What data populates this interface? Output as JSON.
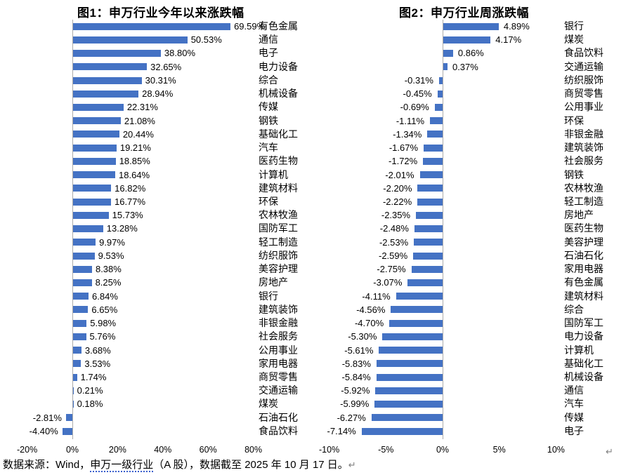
{
  "page": {
    "return_mark": "↵",
    "colors": {
      "bar": "#4472C4",
      "axis_line": "#ABABAB",
      "return_mark": "#7f7f7f",
      "link_underline": "#3A5FCD"
    },
    "footer": {
      "prefix": "数据来源：Wind，",
      "link": "申万一级行业",
      "suffix": "（A 股），数据截至 2025 年 10 月 17 日。"
    }
  },
  "chart_data": [
    {
      "type": "bar",
      "orientation": "horizontal",
      "title": "图1：申万行业今年以来涨跌幅",
      "value_label_format": "0.00%",
      "grid": false,
      "legend": false,
      "zero_axis_line": true,
      "xlim": [
        -20,
        100
      ],
      "x_ticks": [
        "-20%",
        "0%",
        "20%",
        "40%",
        "60%",
        "80%"
      ],
      "x_tick_values": [
        -20,
        0,
        20,
        40,
        60,
        80
      ],
      "categories": [
        "有色金属",
        "通信",
        "电子",
        "电力设备",
        "综合",
        "机械设备",
        "传媒",
        "钢铁",
        "基础化工",
        "汽车",
        "医药生物",
        "计算机",
        "建筑材料",
        "环保",
        "农林牧渔",
        "国防军工",
        "轻工制造",
        "纺织服饰",
        "美容护理",
        "房地产",
        "银行",
        "建筑装饰",
        "非银金融",
        "社会服务",
        "公用事业",
        "家用电器",
        "商贸零售",
        "交通运输",
        "煤炭",
        "石油石化",
        "食品饮料"
      ],
      "values": [
        69.59,
        50.53,
        38.8,
        32.65,
        30.31,
        28.94,
        22.31,
        21.08,
        20.44,
        19.21,
        18.85,
        18.64,
        16.82,
        16.77,
        15.73,
        13.28,
        9.97,
        9.53,
        8.38,
        8.25,
        6.84,
        6.65,
        5.98,
        5.76,
        3.68,
        3.53,
        1.74,
        0.21,
        0.18,
        -2.81,
        -4.4
      ],
      "bar_color": "#4472C4"
    },
    {
      "type": "bar",
      "orientation": "horizontal",
      "title": "图2：申万行业周涨跌幅",
      "value_label_format": "0.00%",
      "grid": false,
      "legend": false,
      "zero_axis_line": true,
      "xlim": [
        -10,
        15
      ],
      "x_ticks": [
        "-10%",
        "-5%",
        "0%",
        "5%",
        "10%"
      ],
      "x_tick_values": [
        -10,
        -5,
        0,
        5,
        10
      ],
      "categories": [
        "银行",
        "煤炭",
        "食品饮料",
        "交通运输",
        "纺织服饰",
        "商贸零售",
        "公用事业",
        "环保",
        "非银金融",
        "建筑装饰",
        "社会服务",
        "钢铁",
        "农林牧渔",
        "轻工制造",
        "房地产",
        "医药生物",
        "美容护理",
        "石油石化",
        "家用电器",
        "有色金属",
        "建筑材料",
        "综合",
        "国防军工",
        "电力设备",
        "计算机",
        "基础化工",
        "机械设备",
        "通信",
        "汽车",
        "传媒",
        "电子"
      ],
      "values": [
        4.89,
        4.17,
        0.86,
        0.37,
        -0.31,
        -0.45,
        -0.69,
        -1.11,
        -1.34,
        -1.67,
        -1.72,
        -2.01,
        -2.2,
        -2.22,
        -2.35,
        -2.48,
        -2.53,
        -2.59,
        -2.75,
        -3.07,
        -4.11,
        -4.56,
        -4.7,
        -5.3,
        -5.61,
        -5.83,
        -5.84,
        -5.92,
        -5.99,
        -6.27,
        -7.14
      ],
      "bar_color": "#4472C4"
    }
  ]
}
